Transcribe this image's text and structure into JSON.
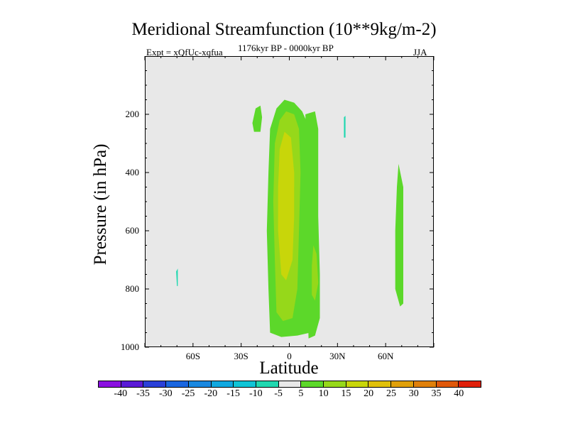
{
  "chart_data": {
    "type": "heatmap",
    "title": "Meridional Streamfunction (10**9kg/m-2)",
    "subtitle_left": "Expt = xQfUc-xqfua",
    "subtitle_center": "1176kyr BP - 0000kyr BP",
    "subtitle_right": "JJA",
    "xlabel": "Latitude",
    "ylabel": "Pressure (in hPa)",
    "xlim": [
      -90,
      90
    ],
    "ylim": [
      1000,
      0
    ],
    "x_ticks": [
      {
        "value": -60,
        "label": "60S"
      },
      {
        "value": -30,
        "label": "30S"
      },
      {
        "value": 0,
        "label": "0"
      },
      {
        "value": 30,
        "label": "30N"
      },
      {
        "value": 60,
        "label": "60N"
      }
    ],
    "y_ticks": [
      {
        "value": 200,
        "label": "200"
      },
      {
        "value": 400,
        "label": "400"
      },
      {
        "value": 600,
        "label": "600"
      },
      {
        "value": 800,
        "label": "800"
      },
      {
        "value": 1000,
        "label": "1000"
      }
    ],
    "colorbar": {
      "labels": [
        "-40",
        "-35",
        "-30",
        "-25",
        "-20",
        "-15",
        "-10",
        "-5",
        "5",
        "10",
        "15",
        "20",
        "25",
        "30",
        "35",
        "40"
      ],
      "colors": [
        "#8a10e0",
        "#5a1ad6",
        "#2a40d8",
        "#1a66e0",
        "#1a88e0",
        "#10a8e0",
        "#10c4d6",
        "#20d8b0",
        "#e8e8e8",
        "#5cd82a",
        "#96d81a",
        "#c8d60a",
        "#e0c00a",
        "#e0a00a",
        "#e0800a",
        "#e0580a",
        "#e0200a"
      ]
    },
    "regions": [
      {
        "name": "tropical-cell-outer",
        "level": "5-10",
        "color": "#5cd82a",
        "polygon": [
          [
            -12,
            950
          ],
          [
            -13,
            800
          ],
          [
            -14,
            600
          ],
          [
            -13,
            400
          ],
          [
            -12,
            250
          ],
          [
            -8,
            180
          ],
          [
            -3,
            150
          ],
          [
            3,
            160
          ],
          [
            8,
            190
          ],
          [
            12,
            240
          ],
          [
            12,
            350
          ],
          [
            11,
            450
          ],
          [
            11,
            600
          ],
          [
            12,
            800
          ],
          [
            13,
            950
          ],
          [
            5,
            960
          ],
          [
            -5,
            965
          ]
        ]
      },
      {
        "name": "nh-tropical-outer",
        "level": "5-10",
        "color": "#5cd82a",
        "polygon": [
          [
            10,
            200
          ],
          [
            16,
            190
          ],
          [
            18,
            250
          ],
          [
            18,
            400
          ],
          [
            18,
            550
          ],
          [
            19,
            750
          ],
          [
            19,
            900
          ],
          [
            16,
            960
          ],
          [
            12,
            970
          ],
          [
            11,
            800
          ],
          [
            10,
            600
          ],
          [
            11,
            400
          ]
        ]
      },
      {
        "name": "sh-upper-blob",
        "level": "5-10",
        "color": "#5cd82a",
        "polygon": [
          [
            -22,
            260
          ],
          [
            -23,
            230
          ],
          [
            -21,
            180
          ],
          [
            -18,
            170
          ],
          [
            -17,
            210
          ],
          [
            -18,
            260
          ]
        ]
      },
      {
        "name": "nh-highlat-strip",
        "level": "5-10",
        "color": "#5cd82a",
        "polygon": [
          [
            66,
            800
          ],
          [
            66,
            600
          ],
          [
            67,
            450
          ],
          [
            68,
            370
          ],
          [
            71,
            450
          ],
          [
            71,
            850
          ],
          [
            69,
            860
          ]
        ]
      },
      {
        "name": "tropical-cell-mid",
        "level": "10-15",
        "color": "#96d81a",
        "polygon": [
          [
            -8,
            880
          ],
          [
            -9,
            700
          ],
          [
            -10,
            500
          ],
          [
            -9,
            300
          ],
          [
            -6,
            220
          ],
          [
            -2,
            190
          ],
          [
            3,
            200
          ],
          [
            6,
            250
          ],
          [
            7,
            400
          ],
          [
            6,
            600
          ],
          [
            5,
            800
          ],
          [
            2,
            900
          ],
          [
            -4,
            910
          ]
        ]
      },
      {
        "name": "tropical-cell-core",
        "level": "15-20",
        "color": "#c8d60a",
        "polygon": [
          [
            -5,
            750
          ],
          [
            -7,
            600
          ],
          [
            -7,
            450
          ],
          [
            -6,
            320
          ],
          [
            -3,
            260
          ],
          [
            1,
            280
          ],
          [
            3,
            400
          ],
          [
            3,
            550
          ],
          [
            2,
            700
          ],
          [
            -2,
            770
          ]
        ]
      },
      {
        "name": "nh-lower-core",
        "level": "10-15",
        "color": "#96d81a",
        "polygon": [
          [
            14,
            820
          ],
          [
            14,
            720
          ],
          [
            15,
            650
          ],
          [
            17,
            680
          ],
          [
            18,
            780
          ],
          [
            16,
            840
          ]
        ]
      },
      {
        "name": "sh-highlat-sliver",
        "level": "-5--10",
        "color": "#20d8b0",
        "polygon": [
          [
            -70,
            790
          ],
          [
            -70.5,
            740
          ],
          [
            -69.5,
            730
          ],
          [
            -69.5,
            790
          ]
        ]
      },
      {
        "name": "nh-upper-sliver",
        "level": "-5--10",
        "color": "#20d8b0",
        "polygon": [
          [
            34,
            280
          ],
          [
            34,
            210
          ],
          [
            35,
            205
          ],
          [
            35,
            280
          ]
        ]
      }
    ]
  }
}
